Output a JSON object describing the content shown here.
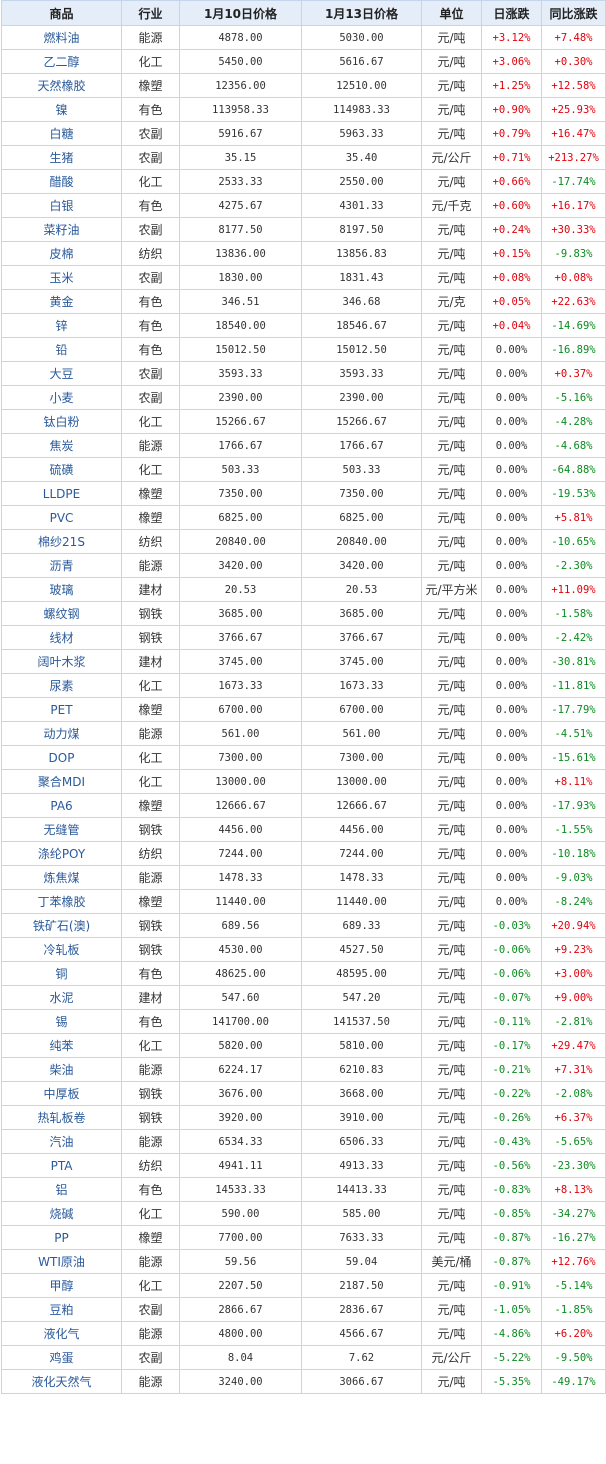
{
  "colors": {
    "up": "#e0000b",
    "down": "#0a8a1e",
    "flat": "#333333",
    "header_bg": "#e4edf8",
    "border": "#c5d6ec"
  },
  "headers": [
    "商品",
    "行业",
    "1月10日价格",
    "1月13日价格",
    "单位",
    "日涨跌",
    "同比涨跌"
  ],
  "rows": [
    {
      "name": "燃料油",
      "sector": "能源",
      "p1": "4878.00",
      "p2": "5030.00",
      "unit": "元/吨",
      "day": "+3.12%",
      "yoy": "+7.48%"
    },
    {
      "name": "乙二醇",
      "sector": "化工",
      "p1": "5450.00",
      "p2": "5616.67",
      "unit": "元/吨",
      "day": "+3.06%",
      "yoy": "+0.30%"
    },
    {
      "name": "天然橡胶",
      "sector": "橡塑",
      "p1": "12356.00",
      "p2": "12510.00",
      "unit": "元/吨",
      "day": "+1.25%",
      "yoy": "+12.58%"
    },
    {
      "name": "镍",
      "sector": "有色",
      "p1": "113958.33",
      "p2": "114983.33",
      "unit": "元/吨",
      "day": "+0.90%",
      "yoy": "+25.93%"
    },
    {
      "name": "白糖",
      "sector": "农副",
      "p1": "5916.67",
      "p2": "5963.33",
      "unit": "元/吨",
      "day": "+0.79%",
      "yoy": "+16.47%"
    },
    {
      "name": "生猪",
      "sector": "农副",
      "p1": "35.15",
      "p2": "35.40",
      "unit": "元/公斤",
      "day": "+0.71%",
      "yoy": "+213.27%"
    },
    {
      "name": "醋酸",
      "sector": "化工",
      "p1": "2533.33",
      "p2": "2550.00",
      "unit": "元/吨",
      "day": "+0.66%",
      "yoy": "-17.74%"
    },
    {
      "name": "白银",
      "sector": "有色",
      "p1": "4275.67",
      "p2": "4301.33",
      "unit": "元/千克",
      "day": "+0.60%",
      "yoy": "+16.17%"
    },
    {
      "name": "菜籽油",
      "sector": "农副",
      "p1": "8177.50",
      "p2": "8197.50",
      "unit": "元/吨",
      "day": "+0.24%",
      "yoy": "+30.33%"
    },
    {
      "name": "皮棉",
      "sector": "纺织",
      "p1": "13836.00",
      "p2": "13856.83",
      "unit": "元/吨",
      "day": "+0.15%",
      "yoy": "-9.83%"
    },
    {
      "name": "玉米",
      "sector": "农副",
      "p1": "1830.00",
      "p2": "1831.43",
      "unit": "元/吨",
      "day": "+0.08%",
      "yoy": "+0.08%"
    },
    {
      "name": "黄金",
      "sector": "有色",
      "p1": "346.51",
      "p2": "346.68",
      "unit": "元/克",
      "day": "+0.05%",
      "yoy": "+22.63%"
    },
    {
      "name": "锌",
      "sector": "有色",
      "p1": "18540.00",
      "p2": "18546.67",
      "unit": "元/吨",
      "day": "+0.04%",
      "yoy": "-14.69%"
    },
    {
      "name": "铅",
      "sector": "有色",
      "p1": "15012.50",
      "p2": "15012.50",
      "unit": "元/吨",
      "day": "0.00%",
      "yoy": "-16.89%"
    },
    {
      "name": "大豆",
      "sector": "农副",
      "p1": "3593.33",
      "p2": "3593.33",
      "unit": "元/吨",
      "day": "0.00%",
      "yoy": "+0.37%"
    },
    {
      "name": "小麦",
      "sector": "农副",
      "p1": "2390.00",
      "p2": "2390.00",
      "unit": "元/吨",
      "day": "0.00%",
      "yoy": "-5.16%"
    },
    {
      "name": "钛白粉",
      "sector": "化工",
      "p1": "15266.67",
      "p2": "15266.67",
      "unit": "元/吨",
      "day": "0.00%",
      "yoy": "-4.28%"
    },
    {
      "name": "焦炭",
      "sector": "能源",
      "p1": "1766.67",
      "p2": "1766.67",
      "unit": "元/吨",
      "day": "0.00%",
      "yoy": "-4.68%"
    },
    {
      "name": "硫磺",
      "sector": "化工",
      "p1": "503.33",
      "p2": "503.33",
      "unit": "元/吨",
      "day": "0.00%",
      "yoy": "-64.88%"
    },
    {
      "name": "LLDPE",
      "sector": "橡塑",
      "p1": "7350.00",
      "p2": "7350.00",
      "unit": "元/吨",
      "day": "0.00%",
      "yoy": "-19.53%"
    },
    {
      "name": "PVC",
      "sector": "橡塑",
      "p1": "6825.00",
      "p2": "6825.00",
      "unit": "元/吨",
      "day": "0.00%",
      "yoy": "+5.81%"
    },
    {
      "name": "棉纱21S",
      "sector": "纺织",
      "p1": "20840.00",
      "p2": "20840.00",
      "unit": "元/吨",
      "day": "0.00%",
      "yoy": "-10.65%"
    },
    {
      "name": "沥青",
      "sector": "能源",
      "p1": "3420.00",
      "p2": "3420.00",
      "unit": "元/吨",
      "day": "0.00%",
      "yoy": "-2.30%"
    },
    {
      "name": "玻璃",
      "sector": "建材",
      "p1": "20.53",
      "p2": "20.53",
      "unit": "元/平方米",
      "day": "0.00%",
      "yoy": "+11.09%"
    },
    {
      "name": "螺纹钢",
      "sector": "钢铁",
      "p1": "3685.00",
      "p2": "3685.00",
      "unit": "元/吨",
      "day": "0.00%",
      "yoy": "-1.58%"
    },
    {
      "name": "线材",
      "sector": "钢铁",
      "p1": "3766.67",
      "p2": "3766.67",
      "unit": "元/吨",
      "day": "0.00%",
      "yoy": "-2.42%"
    },
    {
      "name": "阔叶木浆",
      "sector": "建材",
      "p1": "3745.00",
      "p2": "3745.00",
      "unit": "元/吨",
      "day": "0.00%",
      "yoy": "-30.81%"
    },
    {
      "name": "尿素",
      "sector": "化工",
      "p1": "1673.33",
      "p2": "1673.33",
      "unit": "元/吨",
      "day": "0.00%",
      "yoy": "-11.81%"
    },
    {
      "name": "PET",
      "sector": "橡塑",
      "p1": "6700.00",
      "p2": "6700.00",
      "unit": "元/吨",
      "day": "0.00%",
      "yoy": "-17.79%"
    },
    {
      "name": "动力煤",
      "sector": "能源",
      "p1": "561.00",
      "p2": "561.00",
      "unit": "元/吨",
      "day": "0.00%",
      "yoy": "-4.51%"
    },
    {
      "name": "DOP",
      "sector": "化工",
      "p1": "7300.00",
      "p2": "7300.00",
      "unit": "元/吨",
      "day": "0.00%",
      "yoy": "-15.61%"
    },
    {
      "name": "聚合MDI",
      "sector": "化工",
      "p1": "13000.00",
      "p2": "13000.00",
      "unit": "元/吨",
      "day": "0.00%",
      "yoy": "+8.11%"
    },
    {
      "name": "PA6",
      "sector": "橡塑",
      "p1": "12666.67",
      "p2": "12666.67",
      "unit": "元/吨",
      "day": "0.00%",
      "yoy": "-17.93%"
    },
    {
      "name": "无缝管",
      "sector": "钢铁",
      "p1": "4456.00",
      "p2": "4456.00",
      "unit": "元/吨",
      "day": "0.00%",
      "yoy": "-1.55%"
    },
    {
      "name": "涤纶POY",
      "sector": "纺织",
      "p1": "7244.00",
      "p2": "7244.00",
      "unit": "元/吨",
      "day": "0.00%",
      "yoy": "-10.18%"
    },
    {
      "name": "炼焦煤",
      "sector": "能源",
      "p1": "1478.33",
      "p2": "1478.33",
      "unit": "元/吨",
      "day": "0.00%",
      "yoy": "-9.03%"
    },
    {
      "name": "丁苯橡胶",
      "sector": "橡塑",
      "p1": "11440.00",
      "p2": "11440.00",
      "unit": "元/吨",
      "day": "0.00%",
      "yoy": "-8.24%"
    },
    {
      "name": "铁矿石(澳)",
      "sector": "钢铁",
      "p1": "689.56",
      "p2": "689.33",
      "unit": "元/吨",
      "day": "-0.03%",
      "yoy": "+20.94%"
    },
    {
      "name": "冷轧板",
      "sector": "钢铁",
      "p1": "4530.00",
      "p2": "4527.50",
      "unit": "元/吨",
      "day": "-0.06%",
      "yoy": "+9.23%"
    },
    {
      "name": "铜",
      "sector": "有色",
      "p1": "48625.00",
      "p2": "48595.00",
      "unit": "元/吨",
      "day": "-0.06%",
      "yoy": "+3.00%"
    },
    {
      "name": "水泥",
      "sector": "建材",
      "p1": "547.60",
      "p2": "547.20",
      "unit": "元/吨",
      "day": "-0.07%",
      "yoy": "+9.00%"
    },
    {
      "name": "锡",
      "sector": "有色",
      "p1": "141700.00",
      "p2": "141537.50",
      "unit": "元/吨",
      "day": "-0.11%",
      "yoy": "-2.81%"
    },
    {
      "name": "纯苯",
      "sector": "化工",
      "p1": "5820.00",
      "p2": "5810.00",
      "unit": "元/吨",
      "day": "-0.17%",
      "yoy": "+29.47%"
    },
    {
      "name": "柴油",
      "sector": "能源",
      "p1": "6224.17",
      "p2": "6210.83",
      "unit": "元/吨",
      "day": "-0.21%",
      "yoy": "+7.31%"
    },
    {
      "name": "中厚板",
      "sector": "钢铁",
      "p1": "3676.00",
      "p2": "3668.00",
      "unit": "元/吨",
      "day": "-0.22%",
      "yoy": "-2.08%"
    },
    {
      "name": "热轧板卷",
      "sector": "钢铁",
      "p1": "3920.00",
      "p2": "3910.00",
      "unit": "元/吨",
      "day": "-0.26%",
      "yoy": "+6.37%"
    },
    {
      "name": "汽油",
      "sector": "能源",
      "p1": "6534.33",
      "p2": "6506.33",
      "unit": "元/吨",
      "day": "-0.43%",
      "yoy": "-5.65%"
    },
    {
      "name": "PTA",
      "sector": "纺织",
      "p1": "4941.11",
      "p2": "4913.33",
      "unit": "元/吨",
      "day": "-0.56%",
      "yoy": "-23.30%"
    },
    {
      "name": "铝",
      "sector": "有色",
      "p1": "14533.33",
      "p2": "14413.33",
      "unit": "元/吨",
      "day": "-0.83%",
      "yoy": "+8.13%"
    },
    {
      "name": "烧碱",
      "sector": "化工",
      "p1": "590.00",
      "p2": "585.00",
      "unit": "元/吨",
      "day": "-0.85%",
      "yoy": "-34.27%"
    },
    {
      "name": "PP",
      "sector": "橡塑",
      "p1": "7700.00",
      "p2": "7633.33",
      "unit": "元/吨",
      "day": "-0.87%",
      "yoy": "-16.27%"
    },
    {
      "name": "WTI原油",
      "sector": "能源",
      "p1": "59.56",
      "p2": "59.04",
      "unit": "美元/桶",
      "day": "-0.87%",
      "yoy": "+12.76%"
    },
    {
      "name": "甲醇",
      "sector": "化工",
      "p1": "2207.50",
      "p2": "2187.50",
      "unit": "元/吨",
      "day": "-0.91%",
      "yoy": "-5.14%"
    },
    {
      "name": "豆粕",
      "sector": "农副",
      "p1": "2866.67",
      "p2": "2836.67",
      "unit": "元/吨",
      "day": "-1.05%",
      "yoy": "-1.85%"
    },
    {
      "name": "液化气",
      "sector": "能源",
      "p1": "4800.00",
      "p2": "4566.67",
      "unit": "元/吨",
      "day": "-4.86%",
      "yoy": "+6.20%"
    },
    {
      "name": "鸡蛋",
      "sector": "农副",
      "p1": "8.04",
      "p2": "7.62",
      "unit": "元/公斤",
      "day": "-5.22%",
      "yoy": "-9.50%"
    },
    {
      "name": "液化天然气",
      "sector": "能源",
      "p1": "3240.00",
      "p2": "3066.67",
      "unit": "元/吨",
      "day": "-5.35%",
      "yoy": "-49.17%"
    }
  ]
}
